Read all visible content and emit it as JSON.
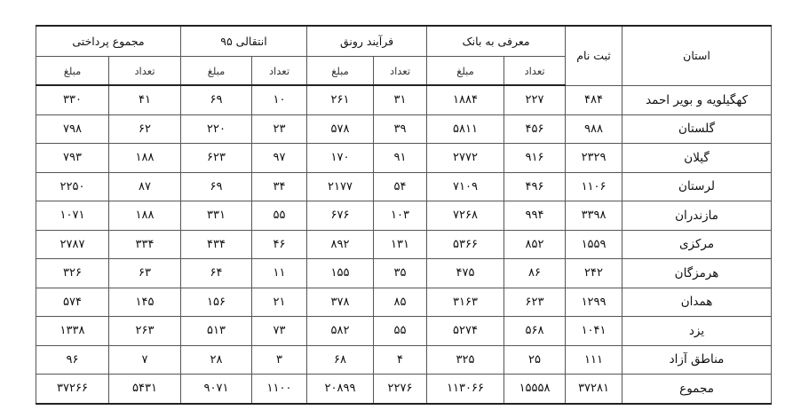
{
  "table": {
    "province": "استان",
    "registered": "ثبت نام",
    "groups": [
      {
        "name": "معرفی به بانک",
        "count": "تعداد",
        "amount": "مبلغ"
      },
      {
        "name": "فرآیند رونق",
        "count": "تعداد",
        "amount": "مبلغ"
      },
      {
        "name": "انتقالی ۹۵",
        "count": "تعداد",
        "amount": "مبلغ"
      },
      {
        "name": "مجموع پرداختی",
        "count": "تعداد",
        "amount": "مبلغ"
      }
    ],
    "rows": [
      [
        "کهگیلویه و بویر احمد",
        "۴۸۴",
        "۲۲۷",
        "۱۸۸۴",
        "۳۱",
        "۲۶۱",
        "۱۰",
        "۶۹",
        "۴۱",
        "۳۳۰"
      ],
      [
        "گلستان",
        "۹۸۸",
        "۴۵۶",
        "۵۸۱۱",
        "۳۹",
        "۵۷۸",
        "۲۳",
        "۲۲۰",
        "۶۲",
        "۷۹۸"
      ],
      [
        "گیلان",
        "۲۳۲۹",
        "۹۱۶",
        "۲۷۷۲",
        "۹۱",
        "۱۷۰",
        "۹۷",
        "۶۲۳",
        "۱۸۸",
        "۷۹۳"
      ],
      [
        "لرستان",
        "۱۱۰۶",
        "۴۹۶",
        "۷۱۰۹",
        "۵۴",
        "۲۱۷۷",
        "۳۴",
        "۶۹",
        "۸۷",
        "۲۲۵۰"
      ],
      [
        "مازندران",
        "۳۳۹۸",
        "۹۹۴",
        "۷۲۶۸",
        "۱۰۳",
        "۶۷۶",
        "۵۵",
        "۳۳۱",
        "۱۸۸",
        "۱۰۷۱"
      ],
      [
        "مرکزی",
        "۱۵۵۹",
        "۸۵۲",
        "۵۳۶۶",
        "۱۳۱",
        "۸۹۲",
        "۴۶",
        "۴۳۴",
        "۳۳۴",
        "۲۷۸۷"
      ],
      [
        "هرمزگان",
        "۲۴۲",
        "۸۶",
        "۴۷۵",
        "۳۵",
        "۱۵۵",
        "۱۱",
        "۶۴",
        "۶۳",
        "۳۲۶"
      ],
      [
        "همدان",
        "۱۲۹۹",
        "۶۲۳",
        "۳۱۶۳",
        "۸۵",
        "۳۷۸",
        "۲۱",
        "۱۵۶",
        "۱۴۵",
        "۵۷۴"
      ],
      [
        "یزد",
        "۱۰۴۱",
        "۵۶۸",
        "۵۲۷۴",
        "۵۵",
        "۵۸۲",
        "۷۳",
        "۵۱۳",
        "۲۶۳",
        "۱۳۳۸"
      ],
      [
        "مناطق آزاد",
        "۱۱۱",
        "۲۵",
        "۳۲۵",
        "۴",
        "۶۸",
        "۳",
        "۲۸",
        "۷",
        "۹۶"
      ],
      [
        "مجموع",
        "۳۷۲۸۱",
        "۱۵۵۵۸",
        "۱۱۳۰۶۶",
        "۲۲۷۶",
        "۲۰۸۹۹",
        "۱۱۰۰",
        "۹۰۷۱",
        "۵۴۳۱",
        "۳۷۲۶۶"
      ]
    ]
  }
}
